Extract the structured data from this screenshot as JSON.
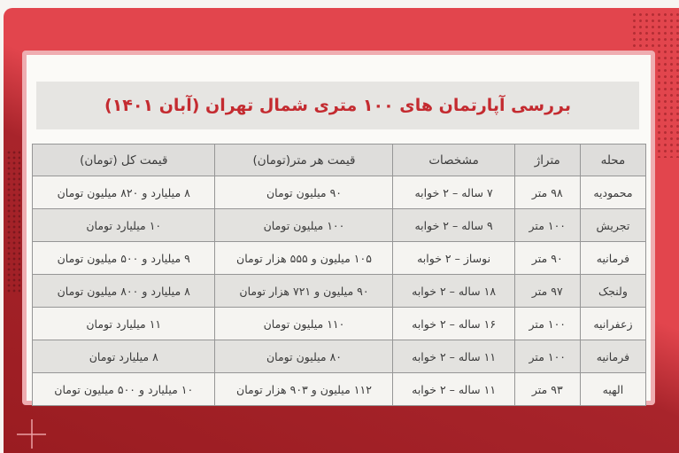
{
  "title": "بررسی آپارتمان های ۱۰۰ متری شمال تهران (آبان ۱۴۰۱)",
  "colors": {
    "bright_red": "#e2454d",
    "dark_red": "#9a1c21",
    "mid_red": "#a8242b",
    "pink_border": "#efadb1",
    "card_bg": "#fbfaf7",
    "panel_gray": "#e6e5e2",
    "header_gray": "#dedddb",
    "row_light": "#f5f4f1",
    "row_dark": "#e3e2df",
    "title_red": "#c42b30",
    "text_color": "#3c3c3c",
    "border_gray": "#969696"
  },
  "decorations": {
    "plus_mark": "+",
    "dot_pattern_top_right": "dot-grid",
    "dot_pattern_left": "dot-grid"
  },
  "table": {
    "columns": [
      {
        "key": "neighborhood",
        "label": "محله",
        "width": "10.5%"
      },
      {
        "key": "area",
        "label": "متراژ",
        "width": "10.5%"
      },
      {
        "key": "specs",
        "label": "مشخصات",
        "width": "19.8%"
      },
      {
        "key": "price_per_meter",
        "label": "قیمت هر متر(تومان)",
        "width": "29.2%"
      },
      {
        "key": "total_price",
        "label": "قیمت کل (تومان)",
        "width": "30%"
      }
    ],
    "rows": [
      {
        "neighborhood": "محمودیه",
        "area": "۹۸ متر",
        "specs": "۷ ساله – ۲ خوابه",
        "price_per_meter": "۹۰ میلیون تومان",
        "total_price": "۸ میلیارد و ۸۲۰ میلیون تومان"
      },
      {
        "neighborhood": "تجریش",
        "area": "۱۰۰ متر",
        "specs": "۹ ساله – ۲ خوابه",
        "price_per_meter": "۱۰۰ میلیون تومان",
        "total_price": "۱۰ میلیارد تومان"
      },
      {
        "neighborhood": "فرمانیه",
        "area": "۹۰ متر",
        "specs": "نوساز – ۲ خوابه",
        "price_per_meter": "۱۰۵ میلیون و ۵۵۵ هزار تومان",
        "total_price": "۹ میلیارد و ۵۰۰ میلیون تومان"
      },
      {
        "neighborhood": "ولنجک",
        "area": "۹۷ متر",
        "specs": "۱۸ ساله – ۲ خوابه",
        "price_per_meter": "۹۰ میلیون و ۷۲۱ هزار تومان",
        "total_price": "۸ میلیارد و ۸۰۰ میلیون تومان"
      },
      {
        "neighborhood": "زعفرانیه",
        "area": "۱۰۰ متر",
        "specs": "۱۶ ساله – ۲ خوابه",
        "price_per_meter": "۱۱۰ میلیون تومان",
        "total_price": "۱۱ میلیارد تومان"
      },
      {
        "neighborhood": "فرمانیه",
        "area": "۱۰۰ متر",
        "specs": "۱۱ ساله – ۲ خوابه",
        "price_per_meter": "۸۰ میلیون تومان",
        "total_price": "۸ میلیارد تومان"
      },
      {
        "neighborhood": "الهیه",
        "area": "۹۳ متر",
        "specs": "۱۱ ساله – ۲ خوابه",
        "price_per_meter": "۱۱۲ میلیون و ۹۰۳ هزار تومان",
        "total_price": "۱۰ میلیارد و ۵۰۰ میلیون تومان"
      }
    ]
  }
}
